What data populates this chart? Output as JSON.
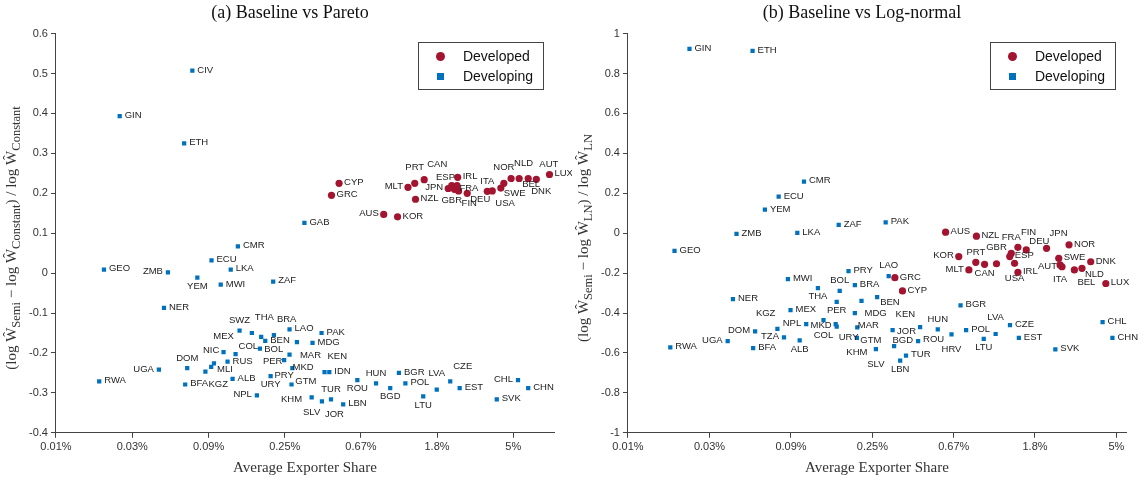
{
  "chart_data": [
    {
      "type": "scatter",
      "title": "(a) Baseline vs Pareto",
      "xlabel": "Average Exporter Share",
      "ylabel": "(log Ŵ$_{Semi}$ − log Ŵ$_{Constant}$) / log Ŵ$_{Constant}$",
      "log": "x",
      "grid": false,
      "legend": "top right",
      "xlim": [
        0.0123,
        8.5
      ],
      "xticks": [
        {
          "value": 0.0123,
          "label": "0.01%"
        },
        {
          "value": 0.0335,
          "label": "0.03%"
        },
        {
          "value": 0.0912,
          "label": "0.09%"
        },
        {
          "value": 0.248,
          "label": "0.25%"
        },
        {
          "value": 0.674,
          "label": "0.67%"
        },
        {
          "value": 1.83,
          "label": "1.8%"
        },
        {
          "value": 4.98,
          "label": "5%"
        }
      ],
      "ylim": [
        -0.4,
        0.6
      ],
      "yticks": [
        -0.4,
        -0.3,
        -0.2,
        -0.1,
        0,
        0.1,
        0.2,
        0.3,
        0.4,
        0.5,
        0.6
      ],
      "series": [
        {
          "name": "Developed",
          "color": "#a2142f",
          "marker": "circle",
          "x": [
            0.506,
            0.458,
            0.909,
            1.09,
            1.38,
            1.25,
            1.366,
            1.547,
            2.4,
            2.12,
            2.22,
            2.38,
            2.3,
            2.43,
            2.72,
            3.54,
            3.78,
            4.23,
            4.4,
            4.84,
            5.38,
            6.06,
            6.74,
            8.01
          ],
          "values": [
            0.225,
            0.195,
            0.147,
            0.141,
            0.185,
            0.215,
            0.225,
            0.234,
            0.24,
            0.212,
            0.219,
            0.219,
            0.21,
            0.206,
            0.2,
            0.205,
            0.206,
            0.213,
            0.225,
            0.237,
            0.237,
            0.237,
            0.235,
            0.247
          ],
          "value_labels": [
            "CYP",
            "GRC",
            "AUS",
            "KOR",
            "NZL",
            "MLT",
            "PRT",
            "CAN",
            "IRL",
            "JPN",
            "GBR",
            "ESP",
            "FRA",
            "FIN",
            "DEU",
            "ITA",
            "USA",
            "SWE",
            "NOR",
            "NLD",
            "BEL",
            "DNK",
            "AUT",
            "LUX"
          ]
        },
        {
          "name": "Developing",
          "color": "#0072bd",
          "marker": "square",
          "x": [
            0.0737,
            0.0284,
            0.0662,
            0.321,
            0.134,
            0.0948,
            0.122,
            0.0231,
            0.0535,
            0.0787,
            0.107,
            0.213,
            0.0508,
            0.0217,
            0.0475,
            0.0689,
            0.0671,
            0.0944,
            0.0979,
            0.0875,
            0.111,
            0.117,
            0.13,
            0.125,
            0.137,
            0.161,
            0.182,
            0.179,
            0.192,
            0.215,
            0.264,
            0.402,
            0.291,
            0.357,
            0.264,
            0.246,
            0.274,
            0.206,
            0.271,
            0.172,
            0.353,
            0.455,
            0.534,
            0.404,
            0.418,
            0.445,
            0.643,
            0.822,
            0.99,
            1.11,
            1.208,
            1.527,
            1.824,
            2.177,
            2.464,
            4.01,
            5.3,
            6.06
          ],
          "values": [
            0.507,
            0.393,
            0.325,
            0.126,
            0.067,
            0.032,
            0.009,
            0.009,
            0.002,
            -0.011,
            -0.029,
            -0.021,
            -0.087,
            -0.271,
            -0.242,
            -0.238,
            -0.279,
            -0.235,
            -0.226,
            -0.247,
            -0.198,
            -0.222,
            -0.203,
            -0.265,
            -0.144,
            -0.15,
            -0.16,
            -0.189,
            -0.17,
            -0.155,
            -0.141,
            -0.15,
            -0.173,
            -0.175,
            -0.204,
            -0.218,
            -0.238,
            -0.258,
            -0.279,
            -0.306,
            -0.311,
            -0.316,
            -0.329,
            -0.321,
            -0.248,
            -0.248,
            -0.268,
            -0.276,
            -0.288,
            -0.25,
            -0.276,
            -0.309,
            -0.292,
            -0.271,
            -0.288,
            -0.316,
            -0.268,
            -0.288
          ],
          "value_labels": [
            "CIV",
            "GIN",
            "ETH",
            "GAB",
            "CMR",
            "ECU",
            "LKA",
            "GEO",
            "ZMB",
            "YEM",
            "MWI",
            "ZAF",
            "NER",
            "RWA",
            "UGA",
            "DOM",
            "BFA",
            "NIC",
            "MLI",
            "KGZ",
            "MEX",
            "RUS",
            "COL",
            "ALB",
            "SWZ",
            "THA",
            "BOL",
            "PER",
            "BEN",
            "BRA",
            "LAO",
            "PAK",
            "MAR",
            "MDG",
            "MKD",
            "PRY",
            "GTM",
            "URY",
            "KHM",
            "NPL",
            "SLV",
            "TUR",
            "LBN",
            "JOR",
            "KEN",
            "IDN",
            "ROU",
            "HUN",
            "BGD",
            "BGR",
            "POL",
            "LTU",
            "LVA",
            "CZE",
            "EST",
            "SVK",
            "CHL",
            "CHN"
          ]
        }
      ]
    },
    {
      "type": "scatter",
      "title": "(b) Baseline vs Log-normal",
      "xlabel": "Average Exporter Share",
      "ylabel": "(log Ŵ$_{Semi}$ − log Ŵ$_{LN}$) / log Ŵ$_{LN}$",
      "log": "x",
      "grid": false,
      "legend": "top right",
      "xlim": [
        0.0123,
        5.6
      ],
      "xticks": [
        {
          "value": 0.0123,
          "label": "0.01%"
        },
        {
          "value": 0.0335,
          "label": "0.03%"
        },
        {
          "value": 0.0912,
          "label": "0.09%"
        },
        {
          "value": 0.248,
          "label": "0.25%"
        },
        {
          "value": 0.674,
          "label": "0.67%"
        },
        {
          "value": 1.83,
          "label": "1.8%"
        },
        {
          "value": 4.98,
          "label": "5%"
        }
      ],
      "ylim": [
        -1,
        1
      ],
      "yticks": [
        -1,
        -0.8,
        -0.6,
        -0.4,
        -0.2,
        0,
        0.2,
        0.4,
        0.6,
        0.8,
        1
      ],
      "series": [
        {
          "name": "Developed",
          "color": "#a2142f",
          "marker": "circle",
          "x": [
            0.327,
            0.359,
            0.61,
            0.891,
            0.717,
            0.812,
            0.884,
            0.985,
            1.14,
            1.342,
            1.367,
            1.483,
            1.483,
            1.424,
            1.644,
            2.11,
            2.78,
            2.45,
            2.49,
            2.55,
            2.97,
            3.26,
            3.63,
            4.37
          ],
          "values": [
            -0.223,
            -0.289,
            0.005,
            -0.015,
            -0.117,
            -0.184,
            -0.146,
            -0.156,
            -0.153,
            -0.117,
            -0.101,
            -0.071,
            -0.196,
            -0.151,
            -0.084,
            -0.076,
            -0.058,
            -0.126,
            -0.159,
            -0.168,
            -0.184,
            -0.176,
            -0.143,
            -0.252
          ],
          "value_labels": [
            "GRC",
            "CYP",
            "AUS",
            "NZL",
            "KOR",
            "MLT",
            "PRT",
            "CAN",
            "GBR",
            "ESP",
            "FRA",
            "FIN",
            "IRL",
            "USA",
            "DEU",
            "JPN",
            "NOR",
            "SWE",
            "ITA",
            "AUT",
            "BEL",
            "NLD",
            "DNK",
            "LUX"
          ]
        },
        {
          "name": "Developing",
          "color": "#0072bd",
          "marker": "square",
          "x": [
            0.0262,
            0.0569,
            0.107,
            0.0784,
            0.0662,
            0.0467,
            0.0986,
            0.164,
            0.292,
            0.0218,
            0.0878,
            0.0447,
            0.185,
            0.303,
            0.127,
            0.2,
            0.166,
            0.16,
            0.217,
            0.2,
            0.263,
            0.0907,
            0.136,
            0.16,
            0.206,
            0.205,
            0.11,
            0.158,
            0.0772,
            0.0837,
            0.1015,
            0.0587,
            0.0419,
            0.0573,
            0.0207,
            0.318,
            0.259,
            0.324,
            0.375,
            0.349,
            0.446,
            0.554,
            0.435,
            0.656,
            0.785,
            0.733,
            0.975,
            1.128,
            1.346,
            1.501,
            2.35,
            4.2,
            4.74
          ],
          "values": [
            0.924,
            0.914,
            0.259,
            0.183,
            0.118,
            -0.003,
            0.002,
            0.042,
            0.054,
            -0.089,
            -0.23,
            -0.33,
            -0.19,
            -0.215,
            -0.275,
            -0.26,
            -0.289,
            -0.344,
            -0.339,
            -0.4,
            -0.32,
            -0.386,
            -0.436,
            -0.468,
            -0.472,
            -0.524,
            -0.456,
            -0.456,
            -0.479,
            -0.522,
            -0.537,
            -0.492,
            -0.541,
            -0.576,
            -0.572,
            -0.485,
            -0.581,
            -0.566,
            -0.613,
            -0.638,
            -0.47,
            -0.482,
            -0.541,
            -0.507,
            -0.485,
            -0.361,
            -0.53,
            -0.505,
            -0.461,
            -0.525,
            -0.582,
            -0.445,
            -0.525
          ],
          "value_labels": [
            "GIN",
            "ETH",
            "CMR",
            "ECU",
            "YEM",
            "ZMB",
            "LKA",
            "ZAF",
            "PAK",
            "GEO",
            "MWI",
            "NER",
            "PRY",
            "LAO",
            "THA",
            "BRA",
            "BOL",
            "PER",
            "MDG",
            "MAR",
            "BEN",
            "MEX",
            "COL",
            "MKD",
            "GTM",
            "KHM",
            "NPL",
            "URY",
            "KGZ",
            "TZA",
            "ALB",
            "DOM",
            "UGA",
            "BFA",
            "RWA",
            "KEN",
            "SLV",
            "JOR",
            "TUR",
            "LBN",
            "ROU",
            "HUN",
            "BGD",
            "HRV",
            "POL",
            "BGR",
            "LTU",
            "LVA",
            "CZE",
            "EST",
            "SVK",
            "CHL",
            "CHN"
          ]
        }
      ]
    }
  ]
}
